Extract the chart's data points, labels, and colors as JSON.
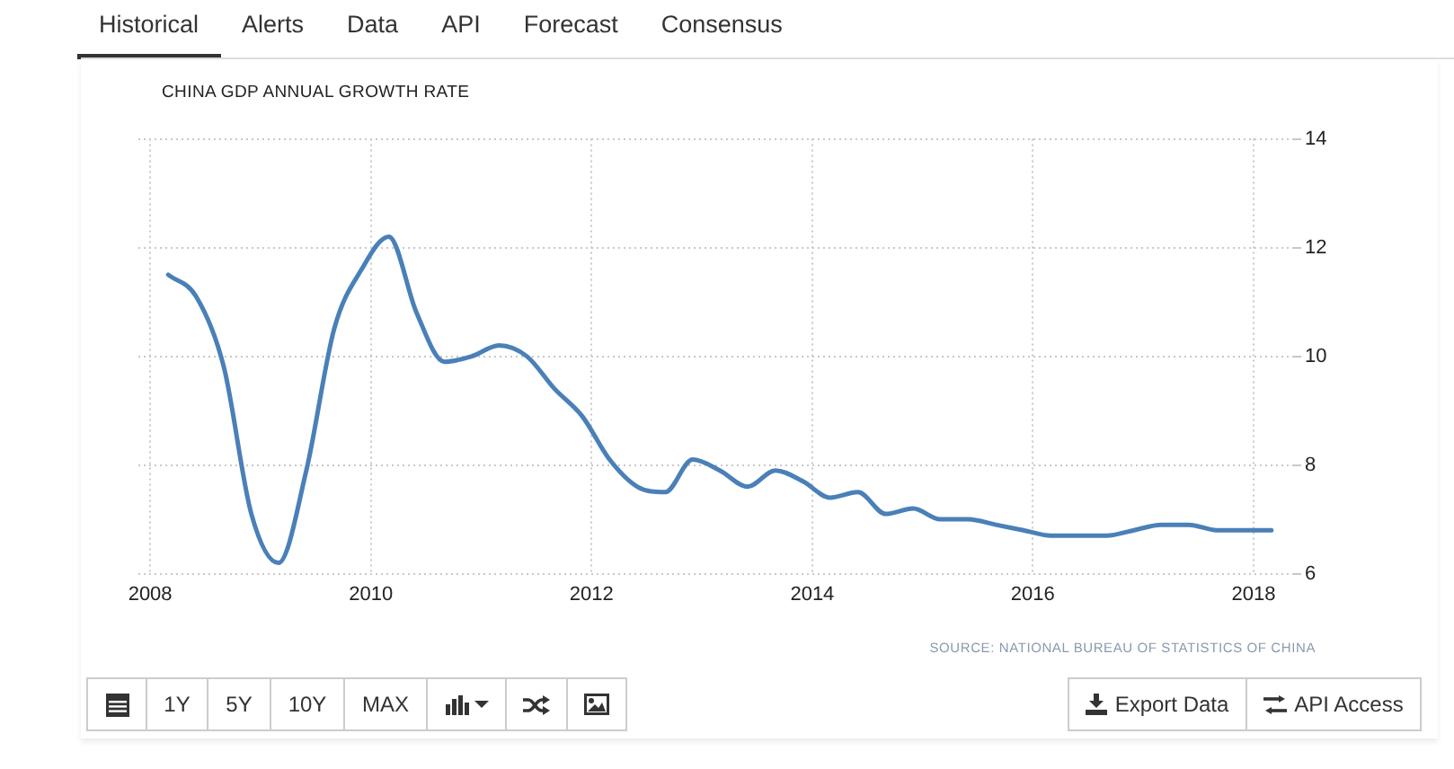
{
  "chart_data": {
    "type": "line",
    "title": "CHINA GDP ANNUAL GROWTH RATE",
    "x": [
      "2008-03",
      "2008-06",
      "2008-09",
      "2008-12",
      "2009-03",
      "2009-06",
      "2009-09",
      "2009-12",
      "2010-03",
      "2010-06",
      "2010-09",
      "2010-12",
      "2011-03",
      "2011-06",
      "2011-09",
      "2011-12",
      "2012-03",
      "2012-06",
      "2012-09",
      "2012-12",
      "2013-03",
      "2013-06",
      "2013-09",
      "2013-12",
      "2014-03",
      "2014-06",
      "2014-09",
      "2014-12",
      "2015-03",
      "2015-06",
      "2015-09",
      "2015-12",
      "2016-03",
      "2016-06",
      "2016-09",
      "2016-12",
      "2017-03",
      "2017-06",
      "2017-09",
      "2017-12",
      "2018-03"
    ],
    "values": [
      11.5,
      11.1,
      9.8,
      7.1,
      6.2,
      7.9,
      10.5,
      11.6,
      12.2,
      10.8,
      9.9,
      10.0,
      10.2,
      10.0,
      9.4,
      8.9,
      8.1,
      7.6,
      7.5,
      8.1,
      7.9,
      7.6,
      7.9,
      7.7,
      7.4,
      7.5,
      7.1,
      7.2,
      7.0,
      7.0,
      6.9,
      6.8,
      6.7,
      6.7,
      6.7,
      6.8,
      6.9,
      6.9,
      6.8,
      6.8,
      6.8
    ],
    "color": "#4a80b8",
    "xlim": [
      "2007-11-23",
      "2018-05-15"
    ],
    "xticks": [
      "2008",
      "2010",
      "2012",
      "2014",
      "2016",
      "2018"
    ],
    "ylim": [
      6,
      14
    ],
    "yticks": [
      6,
      8,
      10,
      12,
      14
    ],
    "grid": true,
    "marker": "none",
    "annotations": [
      "Historical",
      "Alerts",
      "Data",
      "API",
      "Forecast",
      "Consensus",
      "1Y",
      "5Y",
      "10Y",
      "MAX",
      "Export Data",
      "API Access",
      "SOURCE: NATIONAL BUREAU OF STATISTICS OF CHINA"
    ]
  }
}
